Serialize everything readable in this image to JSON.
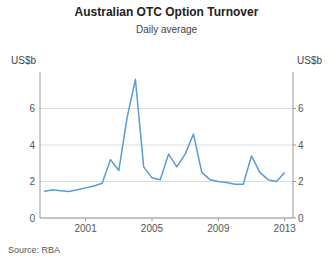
{
  "chart_data": {
    "type": "line",
    "title": "Australian OTC Option Turnover",
    "subtitle": "Daily average",
    "ylabel": "US$b",
    "y2label": "US$b",
    "source": "Source: RBA",
    "color": "#5B9BD5",
    "grid": true,
    "x": [
      1998.5,
      1999.0,
      1999.5,
      2000.0,
      2000.5,
      2001.0,
      2001.5,
      2002.0,
      2002.5,
      2003.0,
      2003.5,
      2004.0,
      2004.5,
      2005.0,
      2005.5,
      2006.0,
      2006.5,
      2007.0,
      2007.5,
      2008.0,
      2008.5,
      2009.0,
      2009.5,
      2010.0,
      2010.5,
      2011.0,
      2011.5,
      2012.0,
      2012.5,
      2013.0
    ],
    "values": [
      1.45,
      1.55,
      1.5,
      1.45,
      1.55,
      1.65,
      1.75,
      1.9,
      3.2,
      2.6,
      5.5,
      7.6,
      2.8,
      2.2,
      2.1,
      3.5,
      2.8,
      3.5,
      4.6,
      2.5,
      2.1,
      2.0,
      1.95,
      1.85,
      1.85,
      3.4,
      2.5,
      2.1,
      2.0,
      2.5
    ],
    "xlim": [
      1998.25,
      2013.5
    ],
    "xticks": [
      2001,
      2005,
      2009,
      2013
    ],
    "ylim": [
      0,
      8
    ],
    "yticks": [
      0,
      2,
      4,
      6
    ],
    "y2lim": [
      0,
      8
    ],
    "y2ticks": [
      0,
      2,
      4,
      6
    ]
  }
}
